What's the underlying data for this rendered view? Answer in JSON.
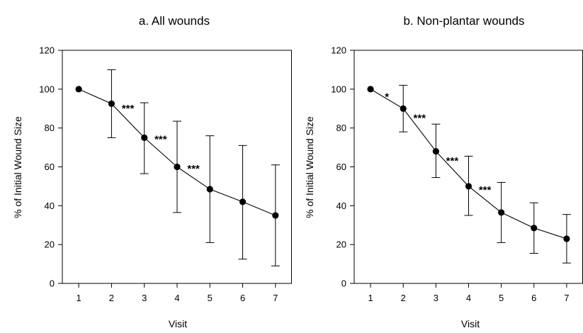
{
  "chart_data": [
    {
      "type": "line",
      "title": "a. All wounds",
      "xlabel": "Visit",
      "ylabel": "% of Initial Wound Size",
      "xlim": [
        0.5,
        7.5
      ],
      "ylim": [
        0,
        120
      ],
      "x_ticks": [
        "1",
        "2",
        "3",
        "4",
        "5",
        "6",
        "7"
      ],
      "y_ticks": [
        "0",
        "20",
        "40",
        "60",
        "80",
        "100",
        "120"
      ],
      "grid": false,
      "series": [
        {
          "x": [
            1,
            2,
            3,
            4,
            5,
            6,
            7
          ],
          "values": [
            100,
            92.5,
            75,
            60,
            48.5,
            42,
            35
          ],
          "error_upper": [
            100,
            110,
            93,
            83.5,
            76,
            71,
            61
          ],
          "error_lower": [
            100,
            75,
            56.5,
            36.5,
            21,
            12.5,
            9
          ]
        }
      ],
      "annotations": [
        {
          "x": 2.5,
          "y": 92,
          "text": "***"
        },
        {
          "x": 3.5,
          "y": 76,
          "text": "***"
        },
        {
          "x": 4.5,
          "y": 61,
          "text": "***"
        }
      ]
    },
    {
      "type": "line",
      "title": "b. Non-plantar wounds",
      "xlabel": "Visit",
      "ylabel": "% of Initial Wound Size",
      "xlim": [
        0.5,
        7.5
      ],
      "ylim": [
        0,
        120
      ],
      "x_ticks": [
        "1",
        "2",
        "3",
        "4",
        "5",
        "6",
        "7"
      ],
      "y_ticks": [
        "0",
        "20",
        "40",
        "60",
        "80",
        "100",
        "120"
      ],
      "grid": false,
      "series": [
        {
          "x": [
            1,
            2,
            3,
            4,
            5,
            6,
            7
          ],
          "values": [
            100,
            90,
            68,
            50,
            36.5,
            28.5,
            23
          ],
          "error_upper": [
            100,
            102,
            82,
            65.5,
            52,
            41.5,
            35.5
          ],
          "error_lower": [
            100,
            78,
            54.5,
            35,
            21,
            15.5,
            10.5
          ]
        }
      ],
      "annotations": [
        {
          "x": 1.5,
          "y": 98,
          "text": "*"
        },
        {
          "x": 2.5,
          "y": 87,
          "text": "***"
        },
        {
          "x": 3.5,
          "y": 65,
          "text": "***"
        },
        {
          "x": 4.5,
          "y": 50,
          "text": "***"
        }
      ]
    }
  ]
}
